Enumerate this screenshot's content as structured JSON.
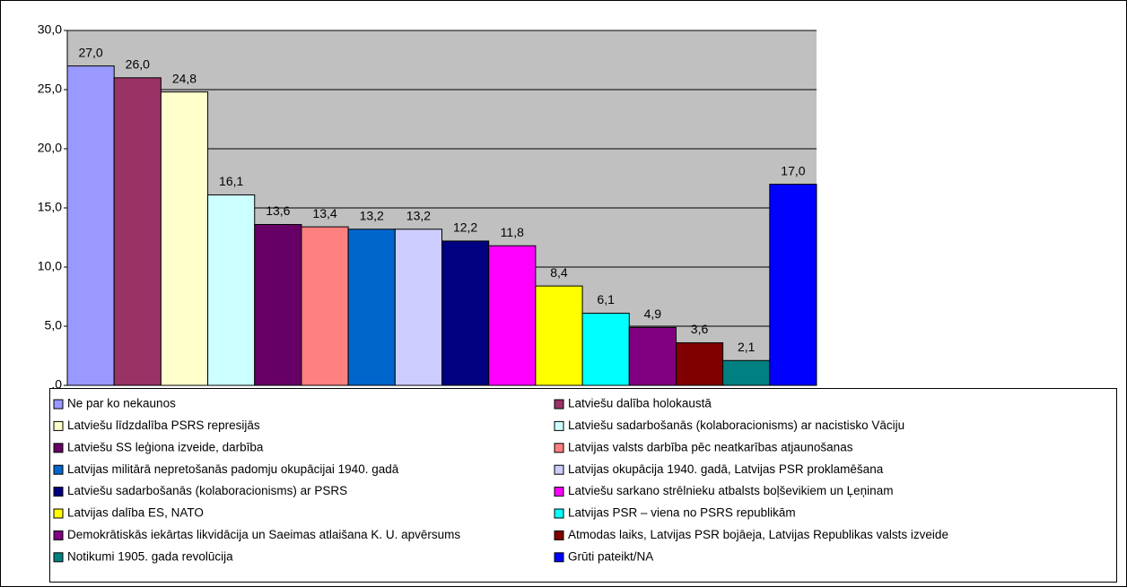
{
  "chart_data": {
    "type": "bar",
    "ylim": [
      0,
      30
    ],
    "yticks": [
      {
        "value": 0,
        "label": ",0"
      },
      {
        "value": 5,
        "label": "5,0"
      },
      {
        "value": 10,
        "label": "10,0"
      },
      {
        "value": 15,
        "label": "15,0"
      },
      {
        "value": 20,
        "label": "20,0"
      },
      {
        "value": 25,
        "label": "25,0"
      },
      {
        "value": 30,
        "label": "30,0"
      }
    ],
    "grid": true,
    "legend": "bottom",
    "series": [
      {
        "name": "Ne par ko nekaunos",
        "color": "#9999ff",
        "values": [
          27.0
        ],
        "value_labels": [
          "27,0"
        ]
      },
      {
        "name": "Latviešu dalība holokaustā",
        "color": "#993366",
        "values": [
          26.0
        ],
        "value_labels": [
          "26,0"
        ]
      },
      {
        "name": "Latviešu līdzdalība PSRS represijās",
        "color": "#ffffcc",
        "values": [
          24.8
        ],
        "value_labels": [
          "24,8"
        ]
      },
      {
        "name": "Latviešu sadarbošanās (kolaboracionisms) ar nacistisko Vāciju",
        "color": "#ccffff",
        "values": [
          16.1
        ],
        "value_labels": [
          "16,1"
        ]
      },
      {
        "name": "Latviešu SS leģiona izveide, darbība",
        "color": "#660066",
        "values": [
          13.6
        ],
        "value_labels": [
          "13,6"
        ]
      },
      {
        "name": "Latvijas valsts darbība pēc neatkarības atjaunošanas",
        "color": "#ff8080",
        "values": [
          13.4
        ],
        "value_labels": [
          "13,4"
        ]
      },
      {
        "name": "Latvijas militārā nepretošanās padomju okupācijai 1940. gadā",
        "color": "#0066cc",
        "values": [
          13.2
        ],
        "value_labels": [
          "13,2"
        ]
      },
      {
        "name": "Latvijas okupācija 1940. gadā, Latvijas PSR proklamēšana",
        "color": "#ccccff",
        "values": [
          13.2
        ],
        "value_labels": [
          "13,2"
        ]
      },
      {
        "name": "Latviešu sadarbošanās (kolaboracionisms) ar PSRS",
        "color": "#000080",
        "values": [
          12.2
        ],
        "value_labels": [
          "12,2"
        ]
      },
      {
        "name": "Latviešu sarkano strēlnieku atbalsts boļševikiem un Ļeņinam",
        "color": "#ff00ff",
        "values": [
          11.8
        ],
        "value_labels": [
          "11,8"
        ]
      },
      {
        "name": "Latvijas dalība ES, NATO",
        "color": "#ffff00",
        "values": [
          8.4
        ],
        "value_labels": [
          "8,4"
        ]
      },
      {
        "name": "Latvijas PSR – viena no PSRS republikām",
        "color": "#00ffff",
        "values": [
          6.1
        ],
        "value_labels": [
          "6,1"
        ]
      },
      {
        "name": "Demokrātiskās iekārtas likvidācija un Saeimas atlaišana K. U. apvērsums",
        "color": "#800080",
        "values": [
          4.9
        ],
        "value_labels": [
          "4,9"
        ]
      },
      {
        "name": "Atmodas laiks, Latvijas PSR bojāeja, Latvijas Republikas valsts izveide",
        "color": "#800000",
        "values": [
          3.6
        ],
        "value_labels": [
          "3,6"
        ]
      },
      {
        "name": "Notikumi 1905. gada revolūcija",
        "color": "#008080",
        "values": [
          2.1
        ],
        "value_labels": [
          "2,1"
        ]
      },
      {
        "name": "Grūti pateikt/NA",
        "color": "#0000ff",
        "values": [
          17.0
        ],
        "value_labels": [
          "17,0"
        ]
      }
    ]
  }
}
